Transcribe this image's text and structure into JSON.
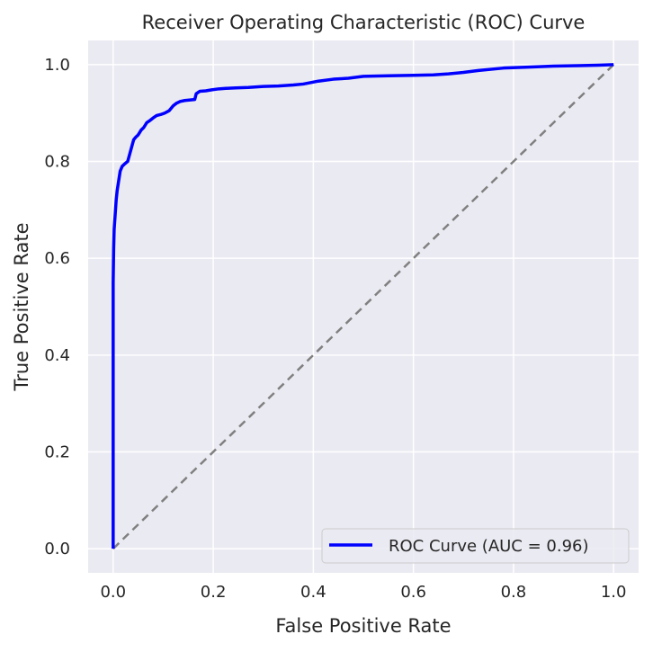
{
  "chart_data": {
    "type": "line",
    "title": "Receiver Operating Characteristic (ROC) Curve",
    "xlabel": "False Positive Rate",
    "ylabel": "True Positive Rate",
    "xlim": [
      -0.05,
      1.05
    ],
    "ylim": [
      -0.05,
      1.05
    ],
    "xticks": [
      0.0,
      0.2,
      0.4,
      0.6,
      0.8,
      1.0
    ],
    "yticks": [
      0.0,
      0.2,
      0.4,
      0.6,
      0.8,
      1.0
    ],
    "xtick_labels": [
      "0.0",
      "0.2",
      "0.4",
      "0.6",
      "0.8",
      "1.0"
    ],
    "ytick_labels": [
      "0.0",
      "0.2",
      "0.4",
      "0.6",
      "0.8",
      "1.0"
    ],
    "grid": true,
    "legend_position": "lower-right",
    "series": [
      {
        "name": "ROC Curve (AUC = 0.96)",
        "color": "#0000ff",
        "style": "solid",
        "x": [
          0.0,
          0.0,
          0.001,
          0.002,
          0.004,
          0.006,
          0.008,
          0.011,
          0.014,
          0.018,
          0.023,
          0.029,
          0.033,
          0.037,
          0.041,
          0.045,
          0.05,
          0.056,
          0.061,
          0.067,
          0.074,
          0.08,
          0.087,
          0.095,
          0.103,
          0.112,
          0.12,
          0.126,
          0.134,
          0.143,
          0.152,
          0.163,
          0.166,
          0.173,
          0.185,
          0.197,
          0.211,
          0.225,
          0.245,
          0.27,
          0.3,
          0.33,
          0.36,
          0.38,
          0.41,
          0.44,
          0.47,
          0.5,
          0.55,
          0.6,
          0.64,
          0.67,
          0.7,
          0.73,
          0.78,
          0.83,
          0.88,
          0.93,
          0.97,
          1.0
        ],
        "y": [
          0.0,
          0.55,
          0.62,
          0.66,
          0.69,
          0.72,
          0.74,
          0.76,
          0.78,
          0.79,
          0.795,
          0.8,
          0.815,
          0.83,
          0.845,
          0.85,
          0.855,
          0.865,
          0.87,
          0.88,
          0.885,
          0.89,
          0.895,
          0.897,
          0.9,
          0.905,
          0.915,
          0.92,
          0.924,
          0.926,
          0.927,
          0.928,
          0.94,
          0.945,
          0.946,
          0.948,
          0.95,
          0.951,
          0.952,
          0.953,
          0.955,
          0.956,
          0.958,
          0.96,
          0.966,
          0.97,
          0.972,
          0.976,
          0.977,
          0.978,
          0.979,
          0.981,
          0.984,
          0.988,
          0.993,
          0.995,
          0.997,
          0.998,
          0.999,
          1.0
        ]
      },
      {
        "color": "#808080",
        "style": "dashed",
        "x": [
          0.0,
          1.0
        ],
        "y": [
          0.0,
          1.0
        ]
      }
    ]
  }
}
